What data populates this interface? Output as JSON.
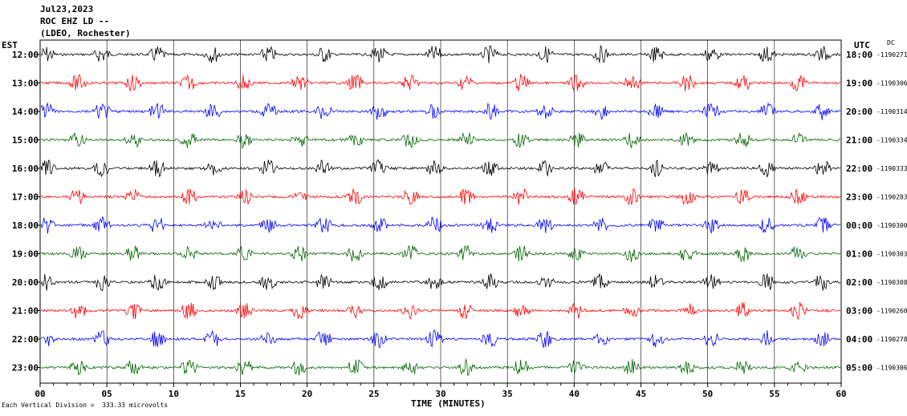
{
  "header": {
    "date": "Jul23,2023",
    "station": "ROC EHZ LD --",
    "network": "(LDEO, Rochester)"
  },
  "footer": {
    "note": "Each Vertical Division =  333.33 microvolts",
    "x_title": "TIME (MINUTES)"
  },
  "chart_data": {
    "type": "line",
    "title": "ROC EHZ LD --",
    "left_axis_label": "EST",
    "right_axis_label": "UTC",
    "dc_label": "DC",
    "xlabel": "TIME (MINUTES)",
    "xlim": [
      0,
      60
    ],
    "x_ticks": [
      "00",
      "05",
      "10",
      "15",
      "20",
      "25",
      "30",
      "35",
      "40",
      "45",
      "50",
      "55",
      "60"
    ],
    "colors": {
      "black": "#000000",
      "red": "#ff0000",
      "blue": "#0000ff",
      "green": "#006400"
    },
    "rows": [
      {
        "est": "12:00",
        "utc": "18:00",
        "dc": "-1190271",
        "color": "black"
      },
      {
        "est": "13:00",
        "utc": "19:00",
        "dc": "-1190306",
        "color": "red"
      },
      {
        "est": "14:00",
        "utc": "20:00",
        "dc": "-1190314",
        "color": "blue"
      },
      {
        "est": "15:00",
        "utc": "21:00",
        "dc": "-1190334",
        "color": "green"
      },
      {
        "est": "16:00",
        "utc": "22:00",
        "dc": "-1190333",
        "color": "black"
      },
      {
        "est": "17:00",
        "utc": "23:00",
        "dc": "-1190283",
        "color": "red"
      },
      {
        "est": "18:00",
        "utc": "00:00",
        "dc": "-1190300",
        "color": "blue"
      },
      {
        "est": "19:00",
        "utc": "01:00",
        "dc": "-1190303",
        "color": "green"
      },
      {
        "est": "20:00",
        "utc": "02:00",
        "dc": "-1190308",
        "color": "black"
      },
      {
        "est": "21:00",
        "utc": "03:00",
        "dc": "-1190260",
        "color": "red"
      },
      {
        "est": "22:00",
        "utc": "04:00",
        "dc": "-1190278",
        "color": "blue"
      },
      {
        "est": "23:00",
        "utc": "05:00",
        "dc": "-1190306",
        "color": "green"
      }
    ]
  }
}
